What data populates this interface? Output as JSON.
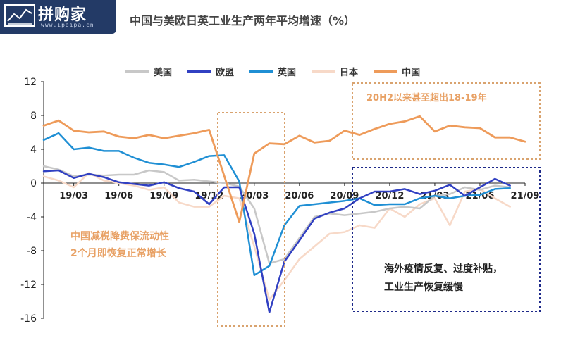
{
  "header": {
    "logo_text": "拼购家",
    "logo_url": "www.ipaipa.cn",
    "title": "中国与美欧日英工业生产两年平均增速（%）"
  },
  "colors": {
    "us": "#c8c8c8",
    "eu": "#3140c2",
    "uk": "#1f8fd4",
    "jp": "#f7d9c8",
    "cn": "#ee9b5a",
    "box_orange": "#d9a36f",
    "box_navy": "#1e2a8a"
  },
  "chart_data": {
    "type": "line",
    "title": "中国与美欧日英工业生产两年平均增速（%）",
    "xlabel": "",
    "ylabel": "",
    "ylim": [
      -16,
      12
    ],
    "yticks": [
      12,
      8,
      4,
      0,
      -4,
      -8,
      -12,
      -16
    ],
    "x": [
      "19/01",
      "19/02",
      "19/03",
      "19/04",
      "19/05",
      "19/06",
      "19/07",
      "19/08",
      "19/09",
      "19/10",
      "19/11",
      "19/12",
      "20/01",
      "20/02",
      "20/03",
      "20/04",
      "20/05",
      "20/06",
      "20/07",
      "20/08",
      "20/09",
      "20/10",
      "20/11",
      "20/12",
      "21/01",
      "21/02",
      "21/03",
      "21/04",
      "21/05",
      "21/06",
      "21/07",
      "21/08",
      "21/09"
    ],
    "xtick_labels": [
      "19/03",
      "19/06",
      "19/09",
      "19/12",
      "20/03",
      "20/06",
      "20/09",
      "20/12",
      "21/03",
      "21/06",
      "21/09"
    ],
    "xtick_indices": [
      2,
      5,
      8,
      11,
      14,
      17,
      20,
      23,
      26,
      29,
      32
    ],
    "legend_position": "top",
    "series": [
      {
        "key": "us",
        "name": "美国",
        "values": [
          2.0,
          1.6,
          0.8,
          1.0,
          0.9,
          1.0,
          1.0,
          1.5,
          1.3,
          0.3,
          0.4,
          0.2,
          0.0,
          -0.4,
          -3.0,
          -9.5,
          -9.0,
          -6.5,
          -4.0,
          -3.6,
          -3.8,
          -3.6,
          -3.4,
          -3.0,
          -2.8,
          -3.0,
          -1.5,
          -1.3,
          -0.5,
          -0.8,
          -0.3,
          -0.5,
          null
        ]
      },
      {
        "key": "eu",
        "name": "欧盟",
        "values": [
          1.4,
          1.5,
          0.6,
          1.1,
          0.7,
          0.1,
          -0.1,
          -0.3,
          0.1,
          -0.6,
          -1.0,
          -2.5,
          -0.5,
          -0.5,
          -6.0,
          -15.3,
          -9.3,
          -6.8,
          -4.2,
          -3.5,
          -3.0,
          -1.8,
          -1.0,
          -1.0,
          -0.7,
          -1.3,
          -0.9,
          -0.2,
          -1.5,
          -0.5,
          0.5,
          -0.3,
          null
        ]
      },
      {
        "key": "uk",
        "name": "英国",
        "values": [
          5.1,
          5.9,
          4.0,
          4.2,
          3.8,
          3.8,
          3.0,
          2.4,
          2.2,
          1.9,
          2.5,
          3.2,
          3.3,
          0.2,
          -10.9,
          -9.8,
          -5.0,
          -2.7,
          -2.5,
          -2.3,
          -2.1,
          -1.8,
          -2.6,
          -2.5,
          -2.5,
          -1.8,
          -1.5,
          -1.8,
          -1.5,
          -1.4,
          -0.7,
          -0.6,
          null
        ]
      },
      {
        "key": "jp",
        "name": "日本",
        "values": [
          0.8,
          0.3,
          -0.5,
          1.2,
          0.3,
          0.0,
          -0.3,
          -0.8,
          -0.5,
          -2.3,
          -2.8,
          -2.8,
          -1.5,
          -1.8,
          -7.5,
          -13.8,
          -11.5,
          -9.0,
          -7.5,
          -6.0,
          -5.8,
          -5.0,
          -5.3,
          -3.0,
          -4.0,
          -2.5,
          -1.8,
          -5.0,
          -1.0,
          -0.7,
          -1.8,
          -2.8,
          null
        ]
      },
      {
        "key": "cn",
        "name": "中国",
        "values": [
          6.8,
          7.4,
          6.2,
          6.0,
          6.1,
          5.5,
          5.3,
          5.7,
          5.3,
          5.6,
          5.9,
          6.3,
          null,
          -4.6,
          3.5,
          4.7,
          4.6,
          5.6,
          4.8,
          5.0,
          6.2,
          5.7,
          6.4,
          7.0,
          7.3,
          7.9,
          6.1,
          6.8,
          6.6,
          6.5,
          5.4,
          5.4,
          4.9
        ]
      }
    ],
    "annotations": [
      "20H2以来甚至超出18-19年",
      "中国减税降费保流动性",
      "2个月即恢复正常增长",
      "海外疫情反复、过度补贴，",
      "工业生产恢复缓慢"
    ]
  }
}
